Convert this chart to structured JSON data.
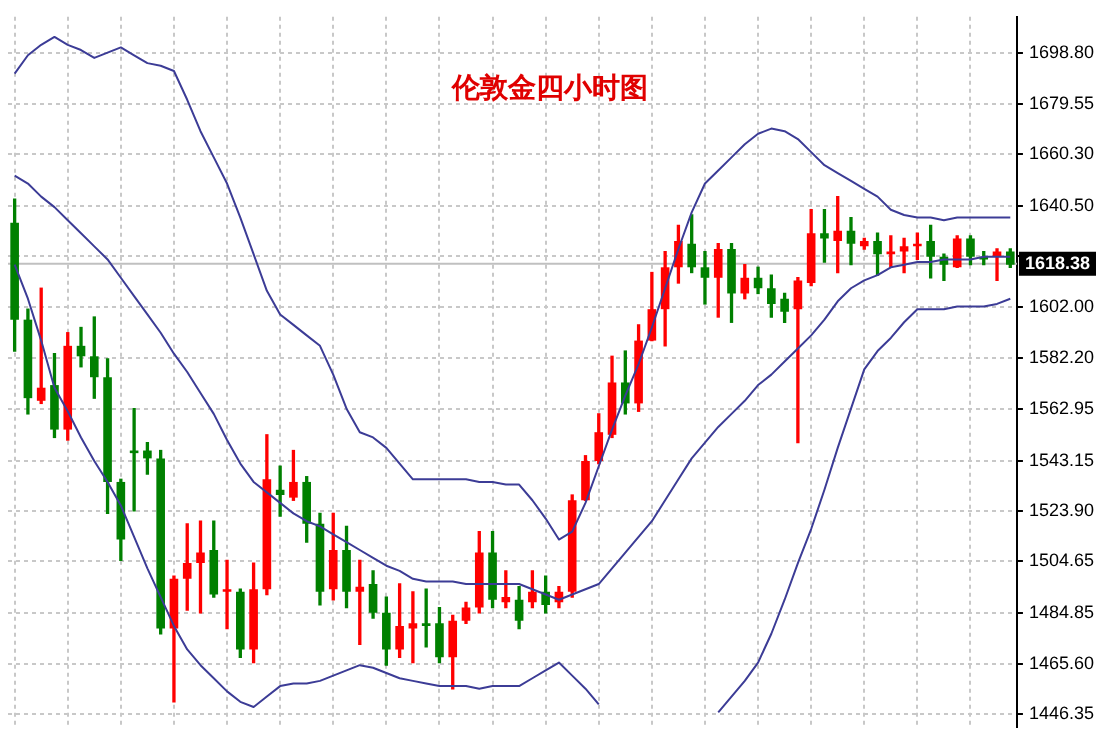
{
  "chart_data": {
    "type": "candlestick",
    "title": "伦敦金四小时图",
    "categories": [
      null,
      null,
      null,
      null,
      null,
      null,
      null,
      null,
      null,
      null,
      null,
      null,
      null,
      null,
      null,
      null,
      null,
      null,
      null,
      null,
      null,
      null,
      null,
      null,
      null,
      null,
      null,
      null,
      null,
      null,
      null,
      null,
      null,
      null,
      null,
      null,
      null,
      null,
      null,
      null,
      null,
      null,
      null,
      null,
      null,
      null,
      null,
      null,
      null,
      null,
      null,
      null,
      null,
      null,
      null,
      null,
      null,
      null,
      null,
      null,
      null,
      null,
      null,
      null,
      null,
      null,
      null,
      null,
      null,
      null,
      null,
      null,
      null,
      null,
      null,
      null
    ],
    "ohlc": [
      [
        1634,
        1643,
        1585,
        1597
      ],
      [
        1597,
        1601,
        1561,
        1567
      ],
      [
        1566,
        1609,
        1565,
        1571
      ],
      [
        1572,
        1584,
        1552,
        1555
      ],
      [
        1555,
        1592,
        1551,
        1587
      ],
      [
        1587,
        1594,
        1579,
        1583
      ],
      [
        1583,
        1598,
        1567,
        1575
      ],
      [
        1575,
        1582,
        1523,
        1535
      ],
      [
        1535,
        1536,
        1505,
        1513
      ],
      [
        1547,
        1563,
        1524,
        1546
      ],
      [
        1547,
        1550,
        1538,
        1544
      ],
      [
        1544,
        1547,
        1477,
        1479
      ],
      [
        1479,
        1499,
        1451,
        1498
      ],
      [
        1498,
        1519,
        1486,
        1504
      ],
      [
        1504,
        1520,
        1485,
        1508
      ],
      [
        1509,
        1520,
        1491,
        1492
      ],
      [
        1493,
        1505,
        1479,
        1494
      ],
      [
        1493,
        1494,
        1468,
        1471
      ],
      [
        1471,
        1504,
        1466,
        1494
      ],
      [
        1494,
        1553,
        1492,
        1536
      ],
      [
        1532,
        1541,
        1522,
        1530
      ],
      [
        1529,
        1547,
        1528,
        1535
      ],
      [
        1535,
        1537,
        1512,
        1519
      ],
      [
        1519,
        1523,
        1488,
        1493
      ],
      [
        1494,
        1523,
        1490,
        1509
      ],
      [
        1509,
        1518,
        1487,
        1493
      ],
      [
        1493,
        1505,
        1473,
        1495
      ],
      [
        1496,
        1501,
        1483,
        1485
      ],
      [
        1485,
        1491,
        1465,
        1471
      ],
      [
        1471,
        1496,
        1468,
        1480
      ],
      [
        1479,
        1493,
        1466,
        1481
      ],
      [
        1481,
        1494,
        1472,
        1480
      ],
      [
        1481,
        1487,
        1466,
        1468
      ],
      [
        1468,
        1484,
        1456,
        1482
      ],
      [
        1482,
        1489,
        1481,
        1487
      ],
      [
        1487,
        1516,
        1485,
        1508
      ],
      [
        1508,
        1516,
        1487,
        1490
      ],
      [
        1489,
        1501,
        1487,
        1491
      ],
      [
        1490,
        1495,
        1479,
        1482
      ],
      [
        1489,
        1501,
        1487,
        1493
      ],
      [
        1493,
        1499,
        1485,
        1488
      ],
      [
        1489,
        1495,
        1487,
        1493
      ],
      [
        1493,
        1530,
        1491,
        1528
      ],
      [
        1528,
        1545,
        1528,
        1543
      ],
      [
        1543,
        1561,
        1542,
        1554
      ],
      [
        1553,
        1583,
        1552,
        1573
      ],
      [
        1573,
        1585,
        1561,
        1565
      ],
      [
        1565,
        1595,
        1562,
        1589
      ],
      [
        1589,
        1615,
        1589,
        1601
      ],
      [
        1601,
        1623,
        1587,
        1617
      ],
      [
        1617,
        1633,
        1611,
        1627
      ],
      [
        1626,
        1637,
        1615,
        1617
      ],
      [
        1617,
        1623,
        1603,
        1613
      ],
      [
        1613,
        1626,
        1598,
        1624
      ],
      [
        1624,
        1626,
        1596,
        1607
      ],
      [
        1607,
        1618,
        1605,
        1613
      ],
      [
        1613,
        1617,
        1607,
        1609
      ],
      [
        1609,
        1614,
        1598,
        1603
      ],
      [
        1605,
        1607,
        1596,
        1600
      ],
      [
        1601,
        1613,
        1550,
        1612
      ],
      [
        1611,
        1639,
        1610,
        1630
      ],
      [
        1630,
        1639,
        1619,
        1628
      ],
      [
        1627,
        1644,
        1615,
        1631
      ],
      [
        1631,
        1636,
        1618,
        1626
      ],
      [
        1625,
        1628,
        1624,
        1627
      ],
      [
        1627,
        1630,
        1614,
        1622
      ],
      [
        1622,
        1629,
        1617,
        1623
      ],
      [
        1623,
        1628,
        1615,
        1625
      ],
      [
        1625,
        1630,
        1620,
        1626
      ],
      [
        1627,
        1633,
        1613,
        1621
      ],
      [
        1621,
        1622,
        1612,
        1618
      ],
      [
        1617,
        1629,
        1617,
        1628
      ],
      [
        1628,
        1629,
        1618,
        1621
      ],
      [
        1621,
        1623,
        1618,
        1620
      ],
      [
        1621,
        1624,
        1612,
        1623
      ],
      [
        1623,
        1624,
        1617,
        1618
      ]
    ],
    "colors": [
      "#008000",
      "#008000",
      "#ff0000",
      "#008000",
      "#ff0000",
      "#008000",
      "#008000",
      "#008000",
      "#008000",
      "#008000",
      "#008000",
      "#008000",
      "#ff0000",
      "#ff0000",
      "#ff0000",
      "#008000",
      "#ff0000",
      "#008000",
      "#ff0000",
      "#ff0000",
      "#008000",
      "#ff0000",
      "#008000",
      "#008000",
      "#ff0000",
      "#008000",
      "#ff0000",
      "#008000",
      "#008000",
      "#ff0000",
      "#ff0000",
      "#008000",
      "#008000",
      "#ff0000",
      "#ff0000",
      "#ff0000",
      "#008000",
      "#ff0000",
      "#008000",
      "#ff0000",
      "#008000",
      "#ff0000",
      "#ff0000",
      "#ff0000",
      "#ff0000",
      "#ff0000",
      "#008000",
      "#ff0000",
      "#ff0000",
      "#ff0000",
      "#ff0000",
      "#008000",
      "#008000",
      "#ff0000",
      "#008000",
      "#ff0000",
      "#008000",
      "#008000",
      "#008000",
      "#ff0000",
      "#ff0000",
      "#008000",
      "#ff0000",
      "#008000",
      "#ff0000",
      "#008000",
      "#ff0000",
      "#ff0000",
      "#ff0000",
      "#008000",
      "#008000",
      "#ff0000",
      "#008000",
      "#008000",
      "#ff0000",
      "#008000"
    ],
    "series": [
      {
        "type": "line",
        "color": "#3c3c96",
        "values": [
          1691,
          1698,
          1702,
          1705,
          1702,
          1700,
          1697,
          1699,
          1701,
          1698,
          1695,
          1694,
          1692,
          1681,
          1669,
          1659,
          1649,
          1636,
          1622,
          1608,
          1599,
          1595,
          1591,
          1587,
          1576,
          1563,
          1554,
          1552,
          1548,
          1542,
          1536,
          1536,
          1536,
          1536,
          1536,
          1535,
          1535,
          1534,
          1534,
          1528,
          1521,
          1513,
          1516,
          1527,
          1541,
          1555,
          1568,
          1580,
          1594,
          1609,
          1624,
          1638,
          1649,
          1654,
          1659,
          1664,
          1668,
          1670,
          1669,
          1666,
          1661,
          1656,
          1653,
          1650,
          1647,
          1644,
          1639,
          1637,
          1636,
          1636,
          1635,
          1636,
          1636,
          1636,
          1636,
          1636
        ]
      },
      {
        "type": "line",
        "color": "#3c3c96",
        "values": [
          1652,
          1649,
          1644,
          1640,
          1635,
          1630,
          1625,
          1620,
          1613,
          1606,
          1599,
          1592,
          1584,
          1577,
          1569,
          1561,
          1551,
          1542,
          1535,
          1531,
          1527,
          1523,
          1520,
          1518,
          1515,
          1512,
          1509,
          1506,
          1503,
          1501,
          1498,
          1497,
          1497,
          1497,
          1496,
          1496,
          1496,
          1496,
          1496,
          1494,
          1492,
          1490,
          1492,
          1494,
          1496,
          1502,
          1508,
          1514,
          1520,
          1528,
          1536,
          1544,
          1550,
          1556,
          1561,
          1566,
          1572,
          1576,
          1581,
          1586,
          1591,
          1597,
          1604,
          1609,
          1612,
          1614,
          1617,
          1618,
          1619,
          1619,
          1620,
          1620,
          1620,
          1621,
          1621,
          1621
        ]
      },
      {
        "type": "line",
        "color": "#3c3c96",
        "values": [
          1618,
          1605,
          1589,
          1571,
          1562,
          1552,
          1543,
          1535,
          1526,
          1514,
          1502,
          1491,
          1480,
          1471,
          1465,
          1460,
          1455,
          1451,
          1449,
          1453,
          1457,
          1458,
          1458,
          1459,
          1461,
          1463,
          1465,
          1464,
          1462,
          1460,
          1459,
          1458,
          1457,
          1457,
          1457,
          1456,
          1457,
          1457,
          1457,
          1460,
          1463,
          1466,
          1461,
          1456,
          1450,
          null,
          null,
          null,
          null,
          null,
          null,
          null,
          null,
          1447,
          1453,
          1459,
          1466,
          1477,
          1490,
          1504,
          1517,
          1532,
          1548,
          1563,
          1578,
          1585,
          1590,
          1596,
          1601,
          1601,
          1601,
          1602,
          1602,
          1602,
          1603,
          1605
        ]
      }
    ],
    "ylim": [
      1441.3,
      1712.7
    ],
    "yticks": [
      {
        "value": 1446.35,
        "label": "1446.35"
      },
      {
        "value": 1465.6,
        "label": "1465.60"
      },
      {
        "value": 1484.85,
        "label": "1484.85"
      },
      {
        "value": 1504.65,
        "label": "1504.65"
      },
      {
        "value": 1523.9,
        "label": "1523.90"
      },
      {
        "value": 1543.15,
        "label": "1543.15"
      },
      {
        "value": 1562.95,
        "label": "1562.95"
      },
      {
        "value": 1582.2,
        "label": "1582.20"
      },
      {
        "value": 1602,
        "label": "1602.00"
      },
      {
        "value": 1621.25,
        "label": null
      },
      {
        "value": 1640.5,
        "label": "1640.50"
      },
      {
        "value": 1660.3,
        "label": "1660.30"
      },
      {
        "value": 1679.55,
        "label": "1679.55"
      },
      {
        "value": 1698.8,
        "label": "1698.80"
      }
    ],
    "ref_lines": [
      {
        "axis": "y",
        "value": 1618.38,
        "label": "1618.38",
        "color": "#c0c0c0"
      }
    ],
    "grid": true,
    "tick_labels": "y"
  }
}
